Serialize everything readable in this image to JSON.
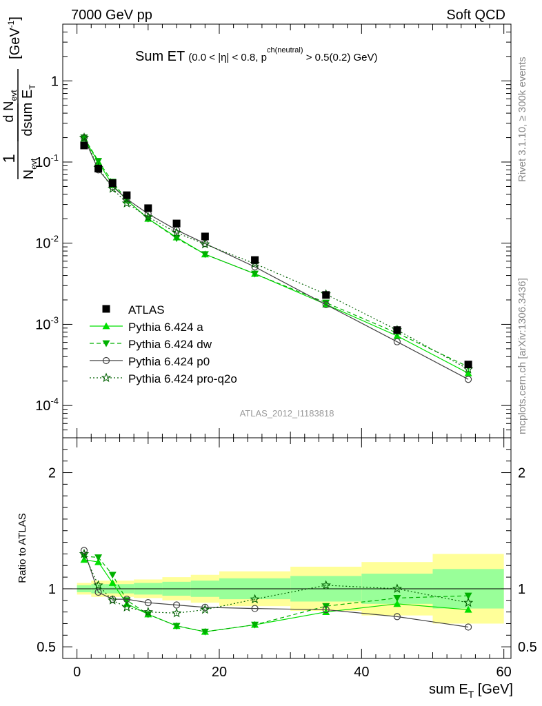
{
  "header": {
    "left": "7000 GeV pp",
    "right": "Soft QCD",
    "side_top": "Rivet 3.1.10, ≥ 300k events",
    "side_bottom": "mcplots.cern.ch [arXiv:1306.3436]",
    "watermark": "ATLAS_2012_I1183818"
  },
  "chart_data": {
    "type": "line",
    "title": "Sum ET",
    "title_small": "(0.0 < |η| < 0.8, p",
    "title_sup": "ch(neutral)",
    "title_tail": " > 0.5(0.2) GeV)",
    "xlabel_main": "sum E",
    "xlabel_sub": "T",
    "xlabel_unit": " [GeV]",
    "ylabel_upper": {
      "one": "1",
      "n": "N",
      "n_sub": "evt",
      "d_n": "d N",
      "d_n_sub": "evt",
      "dsum": "dsum E",
      "dsum_sub": "T",
      "unit": "[GeV",
      "unit_sup": "-1",
      "unit_close": "]"
    },
    "ylabel_lower": "Ratio to ATLAS",
    "xlim": [
      -2,
      61
    ],
    "ylim_upper": [
      4e-05,
      5
    ],
    "ylim_lower": [
      0.4,
      2.3
    ],
    "log_y_upper": true,
    "x_ticks": [
      0,
      20,
      40,
      60
    ],
    "x_tick_labels": [
      "0",
      "20",
      "40",
      "60"
    ],
    "y_ticks_upper": [
      {
        "value": 1,
        "label": "1",
        "sup": ""
      },
      {
        "value": 0.1,
        "label": "10",
        "sup": "-1"
      },
      {
        "value": 0.01,
        "label": "10",
        "sup": "-2"
      },
      {
        "value": 0.001,
        "label": "10",
        "sup": "-3"
      },
      {
        "value": 0.0001,
        "label": "10",
        "sup": "-4"
      }
    ],
    "y_ticks_lower": [
      {
        "value": 0.5,
        "label": "0.5"
      },
      {
        "value": 1,
        "label": "1"
      },
      {
        "value": 2,
        "label": "2"
      }
    ],
    "legend_position": "lower-left",
    "x": [
      1,
      3,
      5,
      7,
      10,
      14,
      18,
      25,
      35,
      45,
      55
    ],
    "bin_edges": [
      0,
      2,
      4,
      6,
      8,
      12,
      16,
      20,
      30,
      40,
      50,
      60
    ],
    "data": {
      "name": "ATLAS",
      "color": "#000000",
      "values": [
        0.16,
        0.083,
        0.055,
        0.039,
        0.027,
        0.0175,
        0.0121,
        0.0062,
        0.0023,
        0.00085,
        0.00032
      ]
    },
    "series": [
      {
        "name": "Pythia 6.424 a",
        "color": "#00e000",
        "dash": "",
        "marker": "triangle-up",
        "values": [
          0.195,
          0.1,
          0.052,
          0.034,
          0.02,
          0.0118,
          0.0073,
          0.0042,
          0.00176,
          0.00072,
          0.00025
        ]
      },
      {
        "name": "Pythia 6.424 dw",
        "color": "#00b000",
        "dash": "6,4",
        "marker": "triangle-down",
        "values": [
          0.2,
          0.103,
          0.057,
          0.034,
          0.02,
          0.0115,
          0.0073,
          0.0042,
          0.00185,
          0.00078,
          0.0003
        ]
      },
      {
        "name": "Pythia 6.424 p0",
        "color": "#404040",
        "dash": "",
        "marker": "circle",
        "values": [
          0.2,
          0.08,
          0.05,
          0.035,
          0.023,
          0.0145,
          0.0099,
          0.0051,
          0.00175,
          0.00061,
          0.00021
        ]
      },
      {
        "name": "Pythia 6.424 pro-q2o",
        "color": "#006000",
        "dash": "2,3",
        "marker": "star",
        "values": [
          0.2,
          0.085,
          0.047,
          0.031,
          0.021,
          0.0135,
          0.0097,
          0.0056,
          0.00235,
          0.00085,
          0.00028
        ]
      }
    ],
    "ratios": [
      [
        1.25,
        1.23,
        1.05,
        0.87,
        0.78,
        0.68,
        0.63,
        0.69,
        0.8,
        0.87,
        0.82
      ],
      [
        1.28,
        1.27,
        1.12,
        0.9,
        0.78,
        0.68,
        0.63,
        0.69,
        0.85,
        0.92,
        0.94
      ],
      [
        1.33,
        0.97,
        0.91,
        0.91,
        0.88,
        0.86,
        0.84,
        0.83,
        0.82,
        0.76,
        0.67
      ],
      [
        1.3,
        1.03,
        0.9,
        0.84,
        0.8,
        0.79,
        0.82,
        0.91,
        1.03,
        1.0,
        0.88
      ]
    ],
    "band_inner": [
      0.03,
      0.04,
      0.04,
      0.04,
      0.05,
      0.06,
      0.07,
      0.09,
      0.11,
      0.13,
      0.17
    ],
    "band_outer": [
      0.05,
      0.07,
      0.07,
      0.07,
      0.08,
      0.1,
      0.12,
      0.15,
      0.19,
      0.23,
      0.3
    ],
    "band_colors": {
      "inner": "#99ff99",
      "outer": "#ffff99"
    }
  }
}
